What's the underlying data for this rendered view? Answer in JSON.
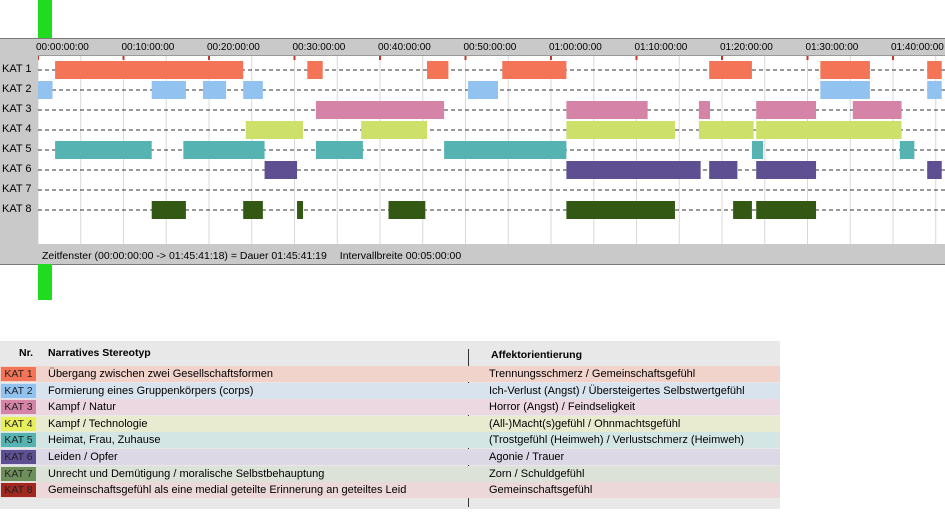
{
  "chart_data": {
    "type": "timeline",
    "x_ticks": [
      "00:00:00:00",
      "00:10:00:00",
      "00:20:00:00",
      "00:30:00:00",
      "00:40:00:00",
      "00:50:00:00",
      "01:00:00:00",
      "01:10:00:00",
      "01:20:00:00",
      "01:30:00:00",
      "01:40:00:00"
    ],
    "x_range_minutes": [
      0,
      105.69
    ],
    "rows": [
      {
        "label": "KAT 1",
        "color": "#f47458",
        "segments": [
          [
            2,
            24
          ],
          [
            31.5,
            33.3
          ],
          [
            45.5,
            48
          ],
          [
            54.3,
            61.8
          ],
          [
            78.5,
            83.5
          ],
          [
            91.5,
            97.3
          ],
          [
            104,
            105.7
          ]
        ]
      },
      {
        "label": "KAT 2",
        "color": "#92c2ef",
        "segments": [
          [
            0,
            1.7
          ],
          [
            13.3,
            17.3
          ],
          [
            19.3,
            22
          ],
          [
            24,
            26.3
          ],
          [
            50.3,
            53.8
          ],
          [
            91.5,
            97.3
          ],
          [
            104,
            105.7
          ]
        ]
      },
      {
        "label": "KAT 3",
        "color": "#d583a6",
        "segments": [
          [
            32.5,
            47.5
          ],
          [
            61.8,
            71.3
          ],
          [
            77.3,
            78.6
          ],
          [
            84,
            91
          ],
          [
            95.3,
            101
          ]
        ]
      },
      {
        "label": "KAT 4",
        "color": "#cde06a",
        "segments": [
          [
            24.3,
            31
          ],
          [
            37.8,
            45.5
          ],
          [
            61.8,
            74.5
          ],
          [
            77.3,
            83.7
          ],
          [
            84,
            101
          ]
        ]
      },
      {
        "label": "KAT 5",
        "color": "#55b3b1",
        "segments": [
          [
            2,
            13.3
          ],
          [
            17,
            26.5
          ],
          [
            32.5,
            38
          ],
          [
            47.5,
            61.8
          ],
          [
            83.5,
            84.8
          ],
          [
            100.8,
            102.5
          ]
        ]
      },
      {
        "label": "KAT 6",
        "color": "#5d4f91",
        "segments": [
          [
            26.5,
            30.3
          ],
          [
            61.8,
            77.5
          ],
          [
            78.5,
            81.8
          ],
          [
            84,
            91
          ],
          [
            104,
            105.7
          ]
        ]
      },
      {
        "label": "KAT 7",
        "color": "#8a9c7a",
        "segments": []
      },
      {
        "label": "KAT 8",
        "color": "#335814",
        "segments": [
          [
            13.3,
            17.3
          ],
          [
            24,
            26.3
          ],
          [
            30.3,
            31
          ],
          [
            41,
            45.3
          ],
          [
            61.8,
            74.5
          ],
          [
            81.3,
            83.5
          ],
          [
            84,
            91
          ]
        ]
      }
    ]
  },
  "status_bar": {
    "zeitfenster": "Zeitfenster (00:00:00:00 -> 01:45:41:18) = Dauer 01:45:41:19",
    "intervall": "Intervallbreite 00:05:00:00"
  },
  "legend": {
    "header_nr": "Nr.",
    "header_narr": "Narratives Stereotyp",
    "header_affekt": "Affektorientierung",
    "rows": [
      {
        "label": "KAT 1",
        "badge_color": "#f47458",
        "row_color": "#f1d3cb",
        "narrative": "Übergang zwischen zwei Gesellschaftsformen",
        "affekt": "Trennungsschmerz / Gemeinschaftsgefühl"
      },
      {
        "label": "KAT 2",
        "badge_color": "#92c2ef",
        "row_color": "#d9e3ee",
        "narrative": "Formierung eines Gruppenkörpers (corps)",
        "affekt": "Ich-Verlust (Angst) / Übersteigertes Selbstwertgefühl"
      },
      {
        "label": "KAT 3",
        "badge_color": "#d583a6",
        "row_color": "#ecd8e0",
        "narrative": "Kampf / Natur",
        "affekt": "Horror (Angst) / Feindseligkeit"
      },
      {
        "label": "KAT 4",
        "badge_color": "#e7ef5a",
        "row_color": "#e8ebcf",
        "narrative": "Kampf / Technologie",
        "affekt": "(All-)Macht(s)gefühl / Ohnmachtsgefühl"
      },
      {
        "label": "KAT 5",
        "badge_color": "#55b3b1",
        "row_color": "#d3e6e4",
        "narrative": "Heimat, Frau, Zuhause",
        "affekt": "(Trostgefühl (Heimweh) / Verlustschmerz (Heimweh)"
      },
      {
        "label": "KAT 6",
        "badge_color": "#5d4f91",
        "row_color": "#dcd8e6",
        "narrative": "Leiden / Opfer",
        "affekt": "Agonie / Trauer"
      },
      {
        "label": "KAT 7",
        "badge_color": "#6f8f5a",
        "row_color": "#dde2d8",
        "narrative": "Unrecht und Demütigung / moralische Selbstbehauptung",
        "affekt": "Zorn / Schuldgefühl"
      },
      {
        "label": "KAT 8",
        "badge_color": "#a0281f",
        "row_color": "#ecd8d8",
        "narrative": "Gemeinschaftsgefühl als eine medial geteilte Erinnerung an geteiltes Leid",
        "affekt": "Gemeinschaftsgefühl"
      }
    ]
  }
}
